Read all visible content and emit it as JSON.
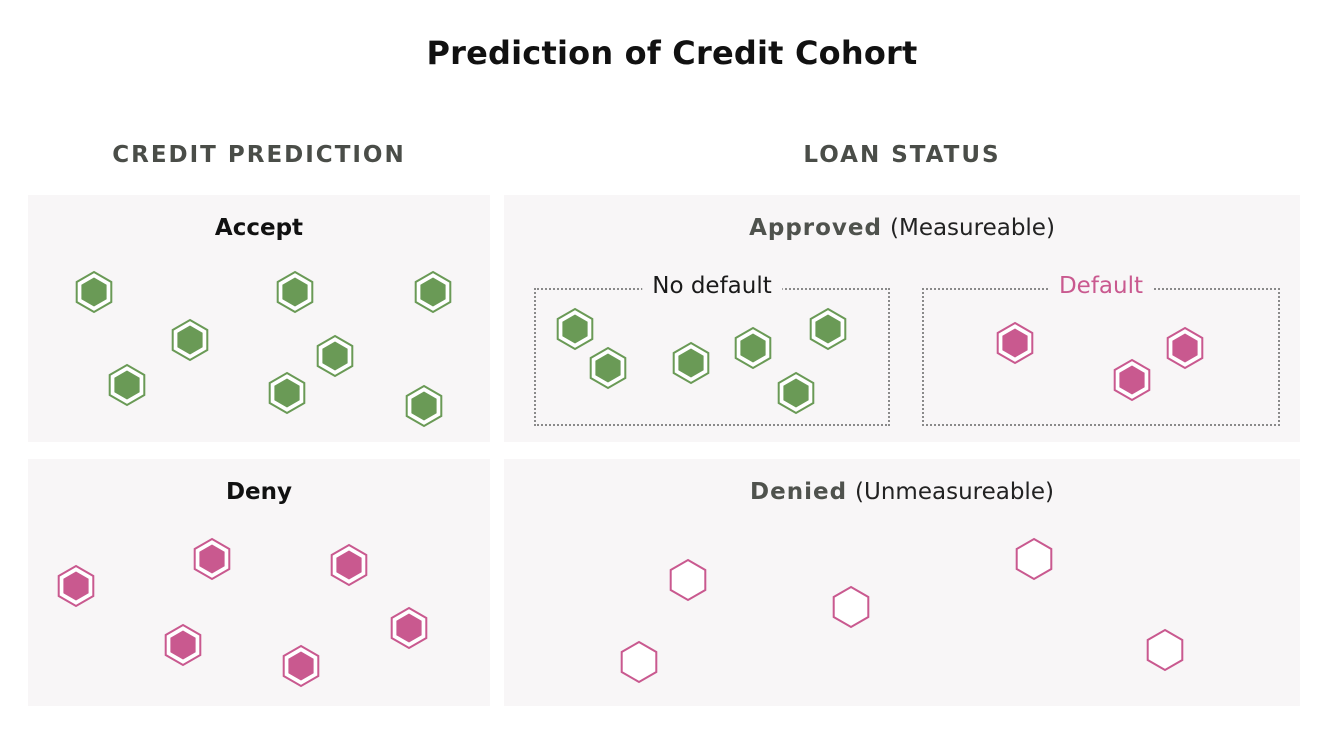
{
  "title": "Prediction of Credit Cohort",
  "columns": {
    "left": "CREDIT PREDICTION",
    "right": "LOAN STATUS"
  },
  "panels": {
    "accept": {
      "title": "Accept"
    },
    "deny": {
      "title": "Deny"
    },
    "approved": {
      "title": "Approved",
      "note": "(Measureable)"
    },
    "denied": {
      "title": "Denied",
      "note": "(Unmeasureable)"
    }
  },
  "groups": {
    "no_default": "No default",
    "default": "Default"
  },
  "colors": {
    "green_fill": "#6a9a56",
    "green_stroke": "#6a9a56",
    "pink_fill": "#c9598f",
    "pink_stroke": "#c9598f",
    "panel_bg": "#f8f6f7"
  }
}
